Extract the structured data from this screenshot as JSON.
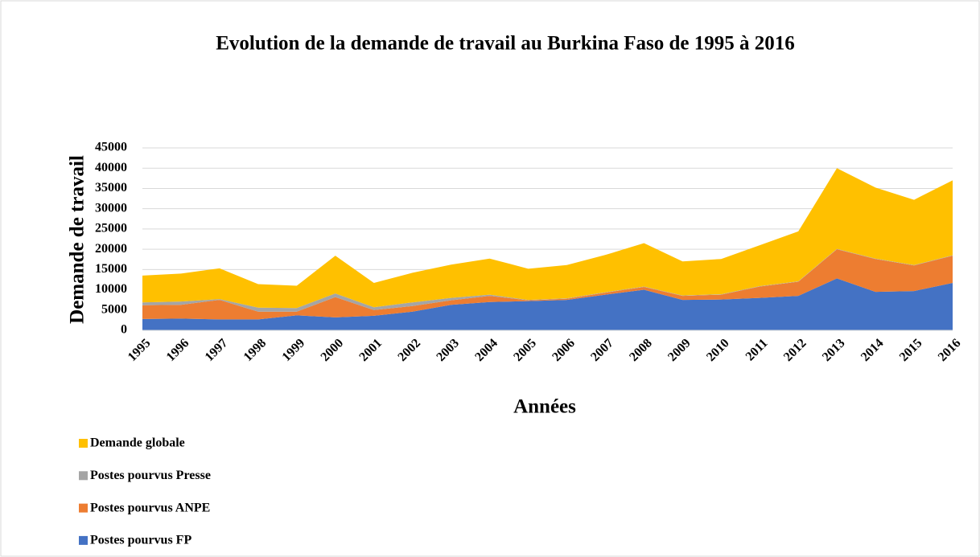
{
  "chart_data": {
    "type": "area",
    "title": "Evolution de la demande de travail au Burkina Faso de 1995 à 2016",
    "x_label": "Années",
    "y_label": "Demande de travail",
    "categories": [
      "1995",
      "1996",
      "1997",
      "1998",
      "1999",
      "2000",
      "2001",
      "2002",
      "2003",
      "2004",
      "2005",
      "2006",
      "2007",
      "2008",
      "2009",
      "2010",
      "2011",
      "2012",
      "2013",
      "2014",
      "2015",
      "2016"
    ],
    "series": [
      {
        "name": "Demande globale",
        "color": "#ffc000",
        "values": [
          6600,
          6900,
          7600,
          5800,
          5500,
          9300,
          6000,
          7300,
          8200,
          8900,
          7700,
          8200,
          9200,
          10700,
          8400,
          8700,
          10100,
          12300,
          19900,
          17500,
          16100,
          18500
        ]
      },
      {
        "name": "Postes pourvus Presse",
        "color": "#a5a5a5",
        "values": [
          700,
          800,
          200,
          1000,
          900,
          900,
          700,
          900,
          600,
          300,
          100,
          100,
          100,
          100,
          100,
          100,
          100,
          100,
          100,
          100,
          100,
          100
        ]
      },
      {
        "name": "Postes pourvus ANPE",
        "color": "#ed7d31",
        "values": [
          3400,
          3400,
          4800,
          1900,
          900,
          5000,
          1400,
          1400,
          1100,
          1500,
          200,
          300,
          500,
          700,
          1000,
          1200,
          2800,
          3500,
          7200,
          8100,
          6300,
          6700
        ]
      },
      {
        "name": "Postes pourvus FP",
        "color": "#4472c4",
        "values": [
          2800,
          2900,
          2700,
          2700,
          3700,
          3200,
          3600,
          4600,
          6300,
          7000,
          7200,
          7500,
          8800,
          10000,
          7500,
          7600,
          8000,
          8500,
          12800,
          9500,
          9700,
          11700
        ]
      }
    ],
    "ylim": [
      0,
      45000
    ],
    "yticks": [
      0,
      5000,
      10000,
      15000,
      20000,
      25000,
      30000,
      35000,
      40000,
      45000
    ],
    "grid": true,
    "legend": "bottom-left"
  }
}
